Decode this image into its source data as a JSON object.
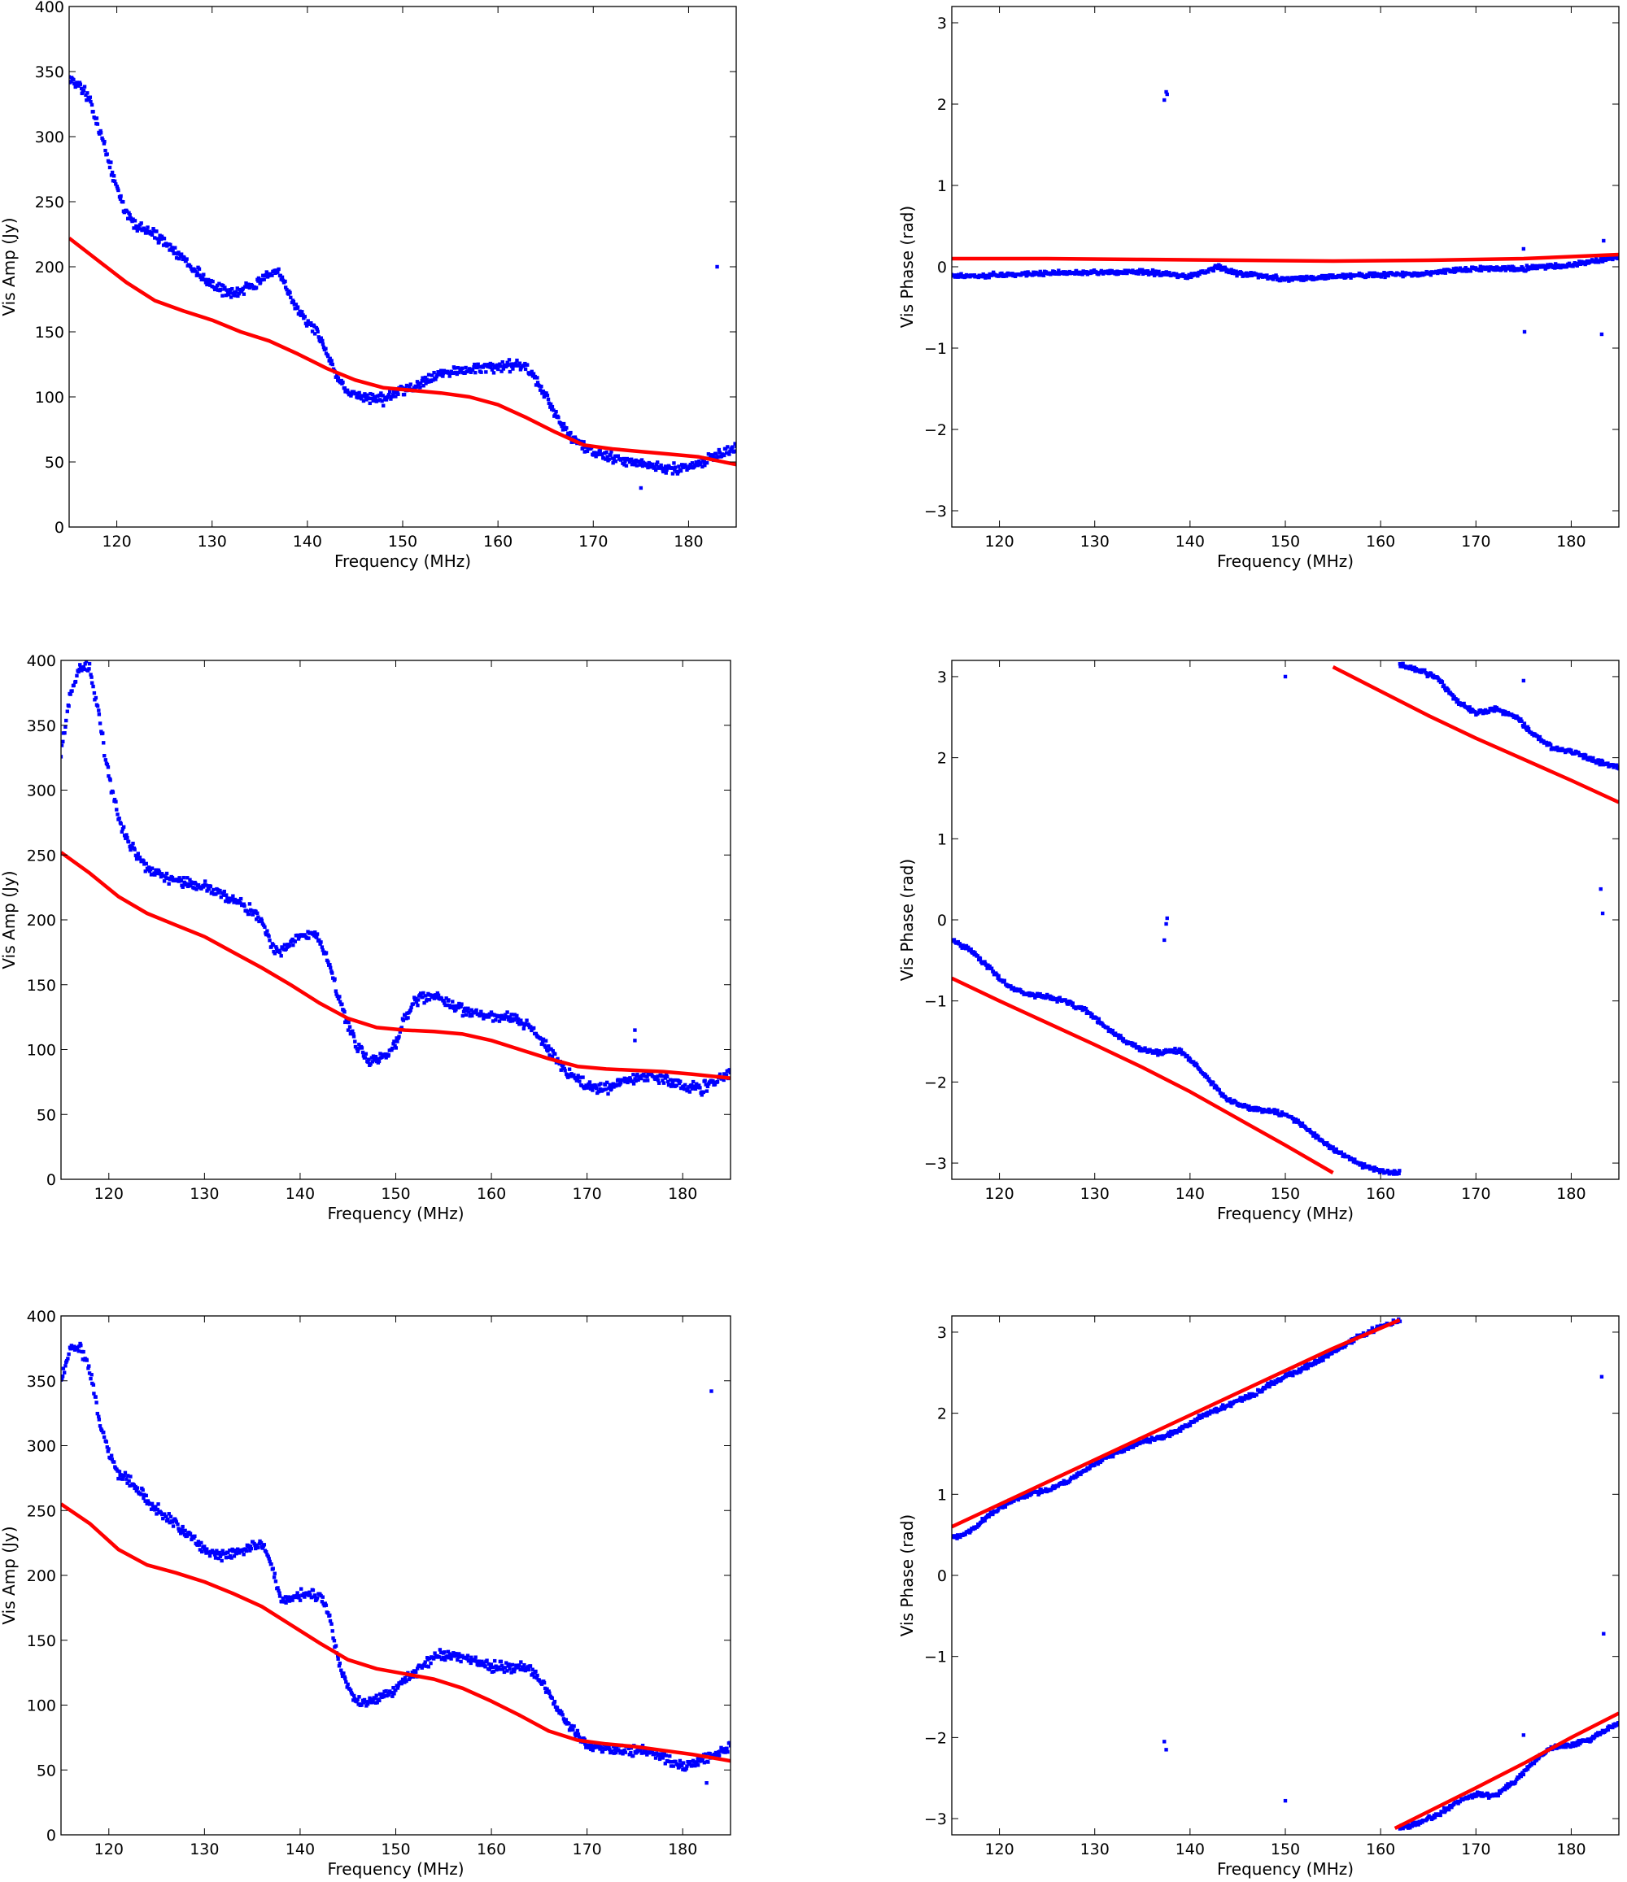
{
  "chart_data": [
    {
      "id": "amp-1",
      "type": "scatter",
      "quantity": "amplitude",
      "xlabel": "Frequency (MHz)",
      "ylabel": "Vis Amp (Jy)",
      "xlim": [
        115,
        185
      ],
      "ylim": [
        0,
        400
      ],
      "xticks": [
        120,
        130,
        140,
        150,
        160,
        170,
        180
      ],
      "yticks": [
        0,
        50,
        100,
        150,
        200,
        250,
        300,
        350,
        400
      ],
      "model_line": {
        "color": "#ff0000",
        "x": [
          115,
          118,
          121,
          124,
          127,
          130,
          133,
          136,
          139,
          142,
          145,
          148,
          151,
          154,
          157,
          160,
          163,
          166,
          169,
          172,
          175,
          178,
          181,
          185
        ],
        "y": [
          222,
          205,
          188,
          174,
          166,
          159,
          150,
          143,
          133,
          122,
          113,
          107,
          105,
          103,
          100,
          94,
          84,
          73,
          63,
          60,
          58,
          56,
          54,
          48
        ]
      },
      "data_trend": {
        "x": [
          115,
          116,
          117,
          118,
          119,
          120,
          121,
          122,
          124,
          126,
          128,
          130,
          132,
          134,
          136,
          137,
          138,
          139,
          140,
          141,
          142,
          143,
          144,
          146,
          148,
          150,
          152,
          154,
          156,
          158,
          160,
          162,
          163,
          164,
          165,
          166,
          167,
          168,
          170,
          172,
          174,
          176,
          178,
          180,
          182,
          185
        ],
        "y": [
          345,
          340,
          330,
          310,
          285,
          260,
          240,
          232,
          225,
          212,
          200,
          185,
          180,
          185,
          193,
          195,
          180,
          167,
          158,
          150,
          135,
          115,
          105,
          100,
          98,
          105,
          112,
          118,
          120,
          122,
          122,
          125,
          122,
          113,
          102,
          87,
          75,
          68,
          57,
          53,
          50,
          47,
          45,
          45,
          52,
          62
        ]
      },
      "outliers": [
        [
          183,
          200
        ],
        [
          175,
          30
        ]
      ],
      "marker_color": "#0000ff"
    },
    {
      "id": "phase-1",
      "type": "scatter",
      "quantity": "phase",
      "xlabel": "Frequency (MHz)",
      "ylabel": "Vis Phase (rad)",
      "xlim": [
        115,
        185
      ],
      "ylim": [
        -3.2,
        3.2
      ],
      "xticks": [
        120,
        130,
        140,
        150,
        160,
        170,
        180
      ],
      "yticks": [
        -3,
        -2,
        -1,
        0,
        1,
        2,
        3
      ],
      "model_line": {
        "color": "#ff0000",
        "x": [
          115,
          125,
          135,
          145,
          155,
          165,
          175,
          185
        ],
        "y": [
          0.1,
          0.1,
          0.09,
          0.08,
          0.07,
          0.08,
          0.1,
          0.15
        ]
      },
      "data_trend": {
        "x": [
          115,
          125,
          135,
          140,
          143,
          145,
          150,
          155,
          160,
          165,
          170,
          175,
          180,
          185
        ],
        "y": [
          -0.12,
          -0.08,
          -0.06,
          -0.12,
          0.0,
          -0.08,
          -0.15,
          -0.12,
          -0.1,
          -0.08,
          -0.02,
          -0.02,
          0.02,
          0.12
        ]
      },
      "outliers": [
        [
          137.3,
          2.05
        ],
        [
          137.5,
          2.15
        ],
        [
          137.6,
          2.12
        ],
        [
          175,
          0.22
        ],
        [
          175.1,
          -0.8
        ],
        [
          183.2,
          -0.83
        ],
        [
          183.4,
          0.32
        ]
      ],
      "marker_color": "#0000ff"
    },
    {
      "id": "amp-2",
      "type": "scatter",
      "quantity": "amplitude",
      "xlabel": "Frequency (MHz)",
      "ylabel": "Vis Amp (Jy)",
      "xlim": [
        115,
        185
      ],
      "ylim": [
        0,
        400
      ],
      "xticks": [
        120,
        130,
        140,
        150,
        160,
        170,
        180
      ],
      "yticks": [
        0,
        50,
        100,
        150,
        200,
        250,
        300,
        350,
        400
      ],
      "model_line": {
        "color": "#ff0000",
        "x": [
          115,
          118,
          121,
          124,
          127,
          130,
          133,
          136,
          139,
          142,
          145,
          148,
          151,
          154,
          157,
          160,
          163,
          166,
          169,
          172,
          175,
          178,
          181,
          185
        ],
        "y": [
          252,
          236,
          218,
          205,
          196,
          187,
          175,
          163,
          150,
          136,
          124,
          117,
          115,
          114,
          112,
          107,
          100,
          93,
          87,
          85,
          84,
          83,
          81,
          78
        ]
      },
      "data_trend": {
        "x": [
          115,
          116,
          117,
          118,
          119,
          120,
          121,
          122,
          124,
          126,
          128,
          130,
          132,
          134,
          136,
          137,
          138,
          139,
          140,
          141,
          142,
          143,
          144,
          145,
          146,
          147,
          148,
          149,
          150,
          151,
          152,
          154,
          156,
          158,
          160,
          162,
          164,
          166,
          168,
          170,
          172,
          174,
          176,
          178,
          180,
          182,
          185
        ],
        "y": [
          330,
          375,
          395,
          395,
          355,
          310,
          280,
          260,
          240,
          233,
          229,
          226,
          220,
          212,
          200,
          178,
          175,
          182,
          188,
          190,
          185,
          168,
          140,
          120,
          102,
          93,
          92,
          95,
          105,
          125,
          138,
          142,
          133,
          128,
          126,
          125,
          118,
          100,
          82,
          72,
          70,
          75,
          80,
          78,
          72,
          70,
          82
        ]
      },
      "outliers": [
        [
          175,
          115
        ],
        [
          175,
          107
        ],
        [
          182,
          65
        ]
      ],
      "marker_color": "#0000ff"
    },
    {
      "id": "phase-2",
      "type": "scatter",
      "quantity": "phase",
      "xlabel": "Frequency (MHz)",
      "ylabel": "Vis Phase (rad)",
      "xlim": [
        115,
        185
      ],
      "ylim": [
        -3.2,
        3.2
      ],
      "xticks": [
        120,
        130,
        140,
        150,
        160,
        170,
        180
      ],
      "yticks": [
        -3,
        -2,
        -1,
        0,
        1,
        2,
        3
      ],
      "model_line": {
        "color": "#ff0000",
        "x": [
          115,
          120,
          125,
          130,
          135,
          140,
          145,
          150,
          155
        ],
        "y": [
          -0.72,
          -1.0,
          -1.27,
          -1.54,
          -1.82,
          -2.12,
          -2.45,
          -2.78,
          -3.12
        ]
      },
      "model_line_2": {
        "color": "#ff0000",
        "x": [
          155,
          160,
          165,
          170,
          175,
          180,
          185
        ],
        "y": [
          3.12,
          2.82,
          2.52,
          2.24,
          1.98,
          1.72,
          1.45
        ]
      },
      "data_trend": {
        "x": [
          115,
          117,
          119,
          121,
          123,
          125,
          127,
          129,
          131,
          133,
          135,
          137,
          138,
          139,
          140,
          142,
          144,
          146,
          148,
          150,
          152,
          154,
          156,
          158,
          160,
          162
        ],
        "y": [
          -0.25,
          -0.38,
          -0.6,
          -0.82,
          -0.92,
          -0.95,
          -1.0,
          -1.12,
          -1.3,
          -1.48,
          -1.6,
          -1.65,
          -1.6,
          -1.62,
          -1.72,
          -1.98,
          -2.22,
          -2.32,
          -2.35,
          -2.4,
          -2.55,
          -2.75,
          -2.9,
          -3.02,
          -3.1,
          -3.12
        ]
      },
      "data_trend_2": {
        "x": [
          162,
          164,
          166,
          168,
          170,
          172,
          174,
          176,
          178,
          180,
          182,
          185
        ],
        "y": [
          3.15,
          3.08,
          2.98,
          2.7,
          2.55,
          2.6,
          2.52,
          2.3,
          2.12,
          2.08,
          1.98,
          1.88
        ]
      },
      "outliers": [
        [
          137.3,
          -0.25
        ],
        [
          137.5,
          -0.05
        ],
        [
          137.6,
          0.02
        ],
        [
          150,
          3.0
        ],
        [
          175,
          2.95
        ],
        [
          183.1,
          0.38
        ],
        [
          183.3,
          0.08
        ]
      ],
      "marker_color": "#0000ff"
    },
    {
      "id": "amp-3",
      "type": "scatter",
      "quantity": "amplitude",
      "xlabel": "Frequency (MHz)",
      "ylabel": "Vis Amp (Jy)",
      "xlim": [
        115,
        185
      ],
      "ylim": [
        0,
        400
      ],
      "xticks": [
        120,
        130,
        140,
        150,
        160,
        170,
        180
      ],
      "yticks": [
        0,
        50,
        100,
        150,
        200,
        250,
        300,
        350,
        400
      ],
      "model_line": {
        "color": "#ff0000",
        "x": [
          115,
          118,
          121,
          124,
          127,
          130,
          133,
          136,
          139,
          142,
          145,
          148,
          151,
          154,
          157,
          160,
          163,
          166,
          169,
          172,
          175,
          178,
          181,
          185
        ],
        "y": [
          255,
          240,
          220,
          208,
          202,
          195,
          186,
          176,
          162,
          148,
          135,
          128,
          124,
          120,
          113,
          103,
          92,
          80,
          73,
          70,
          68,
          65,
          62,
          57
        ]
      },
      "data_trend": {
        "x": [
          115,
          116,
          117,
          118,
          119,
          120,
          121,
          122,
          124,
          126,
          128,
          130,
          132,
          134,
          136,
          137,
          138,
          140,
          142,
          143,
          144,
          145,
          146,
          147,
          148,
          150,
          152,
          154,
          156,
          158,
          160,
          162,
          164,
          166,
          168,
          170,
          172,
          174,
          176,
          178,
          180,
          182,
          185
        ],
        "y": [
          350,
          375,
          375,
          360,
          320,
          295,
          278,
          275,
          258,
          245,
          233,
          220,
          215,
          220,
          225,
          210,
          180,
          185,
          185,
          170,
          135,
          115,
          103,
          102,
          105,
          112,
          125,
          138,
          140,
          135,
          130,
          130,
          128,
          110,
          85,
          70,
          65,
          65,
          65,
          60,
          52,
          58,
          68
        ]
      },
      "outliers": [
        [
          183,
          342
        ],
        [
          182.5,
          40
        ]
      ],
      "marker_color": "#0000ff"
    },
    {
      "id": "phase-3",
      "type": "scatter",
      "quantity": "phase",
      "xlabel": "Frequency (MHz)",
      "ylabel": "Vis Phase (rad)",
      "xlim": [
        115,
        185
      ],
      "ylim": [
        -3.2,
        3.2
      ],
      "xticks": [
        120,
        130,
        140,
        150,
        160,
        170,
        180
      ],
      "yticks": [
        -3,
        -2,
        -1,
        0,
        1,
        2,
        3
      ],
      "model_line": {
        "color": "#ff0000",
        "x": [
          115,
          125,
          135,
          145,
          155,
          162
        ],
        "y": [
          0.6,
          1.15,
          1.7,
          2.25,
          2.8,
          3.15
        ]
      },
      "model_line_2": {
        "color": "#ff0000",
        "x": [
          161.5,
          170,
          175,
          180,
          185
        ],
        "y": [
          -3.12,
          -2.62,
          -2.32,
          -2.0,
          -1.7
        ]
      },
      "data_trend": {
        "x": [
          115,
          117,
          119,
          121,
          123,
          125,
          127,
          129,
          131,
          133,
          135,
          137,
          139,
          141,
          143,
          145,
          147,
          149,
          151,
          153,
          155,
          157,
          159,
          161,
          162
        ],
        "y": [
          0.45,
          0.55,
          0.75,
          0.9,
          1.0,
          1.05,
          1.15,
          1.3,
          1.45,
          1.55,
          1.65,
          1.7,
          1.8,
          1.95,
          2.05,
          2.15,
          2.25,
          2.4,
          2.5,
          2.62,
          2.75,
          2.9,
          3.02,
          3.1,
          3.15
        ]
      },
      "data_trend_2": {
        "x": [
          162,
          164,
          166,
          168,
          170,
          172,
          174,
          176,
          178,
          180,
          182,
          185
        ],
        "y": [
          -3.12,
          -3.05,
          -2.95,
          -2.8,
          -2.7,
          -2.72,
          -2.55,
          -2.3,
          -2.12,
          -2.1,
          -2.02,
          -1.82
        ]
      },
      "outliers": [
        [
          137.3,
          -2.05
        ],
        [
          137.5,
          -2.15
        ],
        [
          150,
          -2.78
        ],
        [
          175,
          -1.97
        ],
        [
          183.2,
          2.45
        ],
        [
          183.4,
          -0.72
        ]
      ],
      "marker_color": "#0000ff"
    }
  ]
}
